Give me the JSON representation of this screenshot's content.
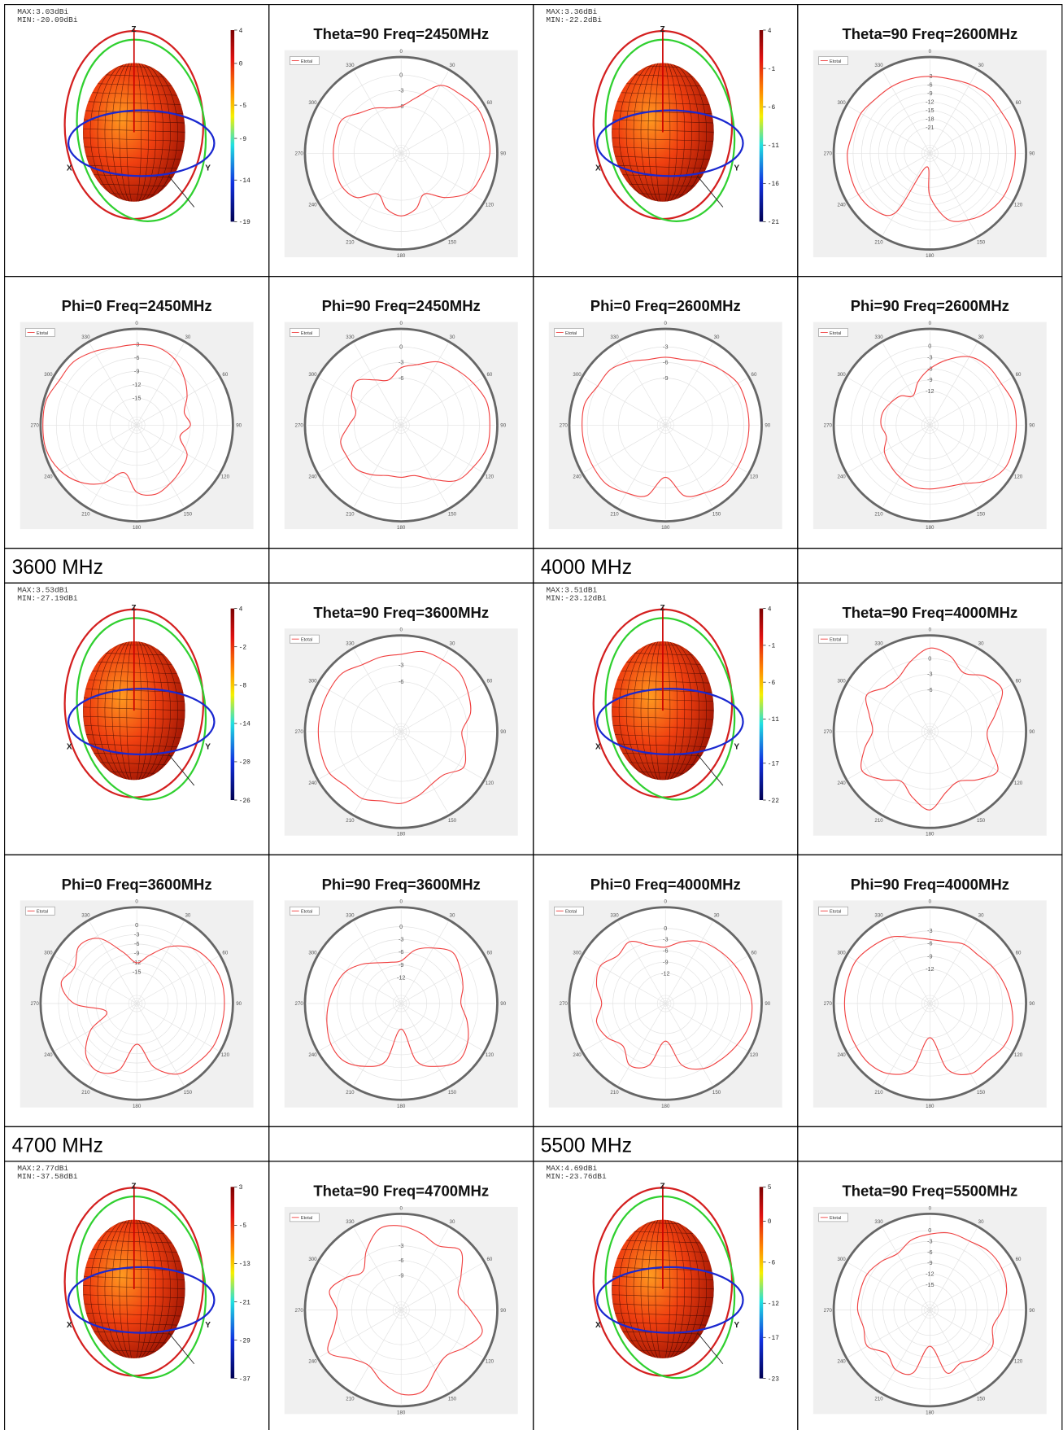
{
  "axis_labels": [
    "Z",
    "X",
    "Y"
  ],
  "legend": "Etotal",
  "angle_ticks": [
    0,
    30,
    60,
    90,
    120,
    150,
    180,
    210,
    240,
    270,
    300,
    330
  ],
  "theta": [
    0,
    15,
    30,
    45,
    60,
    75,
    90,
    105,
    120,
    135,
    150,
    165,
    180,
    195,
    210,
    225,
    240,
    255,
    270,
    285,
    300,
    315,
    330,
    345
  ],
  "rows": [
    {
      "type": "plots",
      "cells": [
        {
          "kind": "3d",
          "max": "MAX:3.03dBi",
          "min": "MIN:-20.09dBi",
          "colorbar": [
            4,
            0,
            -5,
            -9,
            -14,
            -19
          ]
        },
        {
          "kind": "polar",
          "title": "Theta=90 Freq=2450MHz",
          "rlim": [
            -15,
            3
          ],
          "rticks": [
            0,
            -3,
            -6
          ],
          "values": [
            -6,
            -4,
            0,
            1,
            2,
            2,
            2,
            1,
            0,
            -3,
            -6,
            -4,
            -3,
            -4,
            -6,
            -3,
            -2,
            -2,
            -2,
            -2,
            -2,
            -4,
            -5,
            -6
          ]
        },
        {
          "kind": "3d",
          "max": "MAX:3.36dBi",
          "min": "MIN:-22.2dBi",
          "colorbar": [
            4,
            -1,
            -6,
            -11,
            -16,
            -21
          ]
        },
        {
          "kind": "polar",
          "title": "Theta=90 Freq=2600MHz",
          "rlim": [
            -30,
            3
          ],
          "rticks": [
            -3,
            -6,
            -9,
            -12,
            -15,
            -18,
            -21
          ],
          "values": [
            -3,
            -3,
            -2,
            -1,
            -1,
            0,
            0,
            0,
            0,
            -1,
            -3,
            -6,
            -15,
            -25,
            -6,
            -2,
            -1,
            -1,
            -1,
            -2,
            -2,
            -3,
            -3,
            -3
          ]
        }
      ]
    },
    {
      "type": "plots",
      "cells": [
        {
          "kind": "polar",
          "title": "Phi=0 Freq=2450MHz",
          "rlim": [
            -21,
            0
          ],
          "rticks": [
            -3,
            -6,
            -9,
            -12,
            -15
          ],
          "values": [
            -3,
            -3,
            -4,
            -6,
            -8,
            -10,
            -9,
            -11,
            -8,
            -7,
            -6,
            -5,
            -6,
            -10,
            -6,
            -3,
            -1,
            0,
            0,
            0,
            -1,
            -1,
            -2,
            -3
          ]
        },
        {
          "kind": "polar",
          "title": "Phi=90 Freq=2450MHz",
          "rlim": [
            -15,
            3
          ],
          "rticks": [
            0,
            -3,
            -6
          ],
          "values": [
            -4,
            -3,
            -1,
            0,
            1,
            2,
            2,
            2,
            1,
            0,
            -3,
            -5,
            -5,
            -5,
            -4,
            -3,
            -3,
            -3,
            -5,
            -6,
            -4,
            -3,
            -5,
            -6
          ]
        },
        {
          "kind": "polar",
          "title": "Phi=0 Freq=2600MHz",
          "rlim": [
            -18,
            0
          ],
          "rticks": [
            -3,
            -6,
            -9
          ],
          "values": [
            -5,
            -5,
            -4,
            -3,
            -2,
            -2,
            -2,
            -2,
            -2,
            -2,
            -3,
            -4,
            -8,
            -4,
            -3,
            -2,
            -2,
            -2,
            -2,
            -2,
            -3,
            -3,
            -4,
            -5
          ]
        },
        {
          "kind": "polar",
          "title": "Phi=90 Freq=2600MHz",
          "rlim": [
            -21,
            4
          ],
          "rticks": [
            0,
            -3,
            -6,
            -9,
            -12
          ],
          "values": [
            -6,
            -3,
            0,
            1,
            1,
            2,
            2,
            2,
            2,
            0,
            -3,
            -4,
            -4,
            -4,
            -5,
            -6,
            -7,
            -9,
            -8,
            -8,
            -9,
            -10,
            -12,
            -9
          ]
        }
      ]
    },
    {
      "type": "header",
      "labels": [
        "3600 MHz",
        "4000 MHz"
      ]
    },
    {
      "type": "plots",
      "cells": [
        {
          "kind": "3d",
          "max": "MAX:3.53dBi",
          "min": "MIN:-27.19dBi",
          "colorbar": [
            4,
            -2,
            -8,
            -14,
            -20,
            -26
          ]
        },
        {
          "kind": "polar",
          "title": "Theta=90 Freq=3600MHz",
          "rlim": [
            -15,
            2
          ],
          "rticks": [
            -3,
            -6
          ],
          "values": [
            -1,
            0,
            0,
            0,
            -1,
            -2,
            -4,
            -3,
            -2,
            -4,
            -4,
            -3,
            -2,
            -2,
            -1,
            -1,
            0,
            0,
            0,
            0,
            0,
            0,
            -1,
            -1
          ]
        },
        {
          "kind": "3d",
          "max": "MAX:3.51dBi",
          "min": "MIN:-23.12dBi",
          "colorbar": [
            4,
            -1,
            -6,
            -11,
            -17,
            -22
          ]
        },
        {
          "kind": "polar",
          "title": "Theta=90 Freq=4000MHz",
          "rlim": [
            -14,
            4
          ],
          "rticks": [
            0,
            -3,
            -6
          ],
          "values": [
            2,
            1,
            -1,
            1,
            2,
            -1,
            -3,
            -2,
            1,
            -1,
            -3,
            -2,
            1,
            -1,
            -3,
            -1,
            1,
            -1,
            -3,
            -2,
            0,
            -2,
            -2,
            0
          ]
        }
      ]
    },
    {
      "type": "plots",
      "cells": [
        {
          "kind": "polar",
          "title": "Phi=0 Freq=3600MHz",
          "rlim": [
            -25,
            5
          ],
          "rticks": [
            0,
            -3,
            -6,
            -9,
            -12,
            -15
          ],
          "values": [
            -12,
            -9,
            -4,
            0,
            2,
            3,
            3,
            3,
            3,
            2,
            1,
            -4,
            -12,
            -3,
            0,
            -2,
            -8,
            -15,
            -5,
            0,
            -2,
            1,
            -1,
            -8
          ]
        },
        {
          "kind": "polar",
          "title": "Phi=90 Freq=3600MHz",
          "rlim": [
            -18,
            4
          ],
          "rticks": [
            0,
            -3,
            -6,
            -9,
            -12
          ],
          "values": [
            -8,
            -5,
            -3,
            -1,
            -2,
            -3,
            -4,
            -2,
            0,
            1,
            -1,
            -4,
            -12,
            -4,
            -1,
            1,
            1,
            0,
            -1,
            -2,
            -3,
            -5,
            -7,
            -8
          ]
        },
        {
          "kind": "polar",
          "title": "Phi=0 Freq=4000MHz",
          "rlim": [
            -20,
            5
          ],
          "rticks": [
            0,
            -3,
            -6,
            -9,
            -12
          ],
          "values": [
            -5,
            -3,
            -1,
            0,
            1,
            2,
            3,
            3,
            2,
            1,
            0,
            -3,
            -10,
            -3,
            -1,
            -4,
            -2,
            -1,
            -3,
            -1,
            0,
            -2,
            -1,
            -4
          ]
        },
        {
          "kind": "polar",
          "title": "Phi=90 Freq=4000MHz",
          "rlim": [
            -20,
            2
          ],
          "rticks": [
            -3,
            -6,
            -9,
            -12
          ],
          "values": [
            -5,
            -5,
            -4,
            -4,
            -3,
            -2,
            -1,
            0,
            0,
            -1,
            -1,
            -4,
            -12,
            -4,
            -1,
            0,
            0,
            0,
            0,
            0,
            0,
            -1,
            -2,
            -4
          ]
        }
      ]
    },
    {
      "type": "header",
      "labels": [
        "4700 MHz",
        "5500 MHz"
      ]
    },
    {
      "type": "plots",
      "cells": [
        {
          "kind": "3d",
          "max": "MAX:2.77dBi",
          "min": "MIN:-37.58dBi",
          "colorbar": [
            3,
            -5,
            -13,
            -21,
            -29,
            -37
          ]
        },
        {
          "kind": "polar",
          "title": "Theta=90 Freq=4700MHz",
          "rlim": [
            -16,
            3
          ],
          "rticks": [
            -3,
            -6,
            -9
          ],
          "values": [
            1,
            0,
            -1,
            1,
            -2,
            -4,
            -2,
            1,
            -1,
            -3,
            -2,
            1,
            1,
            -1,
            -3,
            -2,
            1,
            -2,
            -3,
            -1,
            -3,
            -5,
            -2,
            1
          ]
        },
        {
          "kind": "3d",
          "max": "MAX:4.69dBi",
          "min": "MIN:-23.76dBi",
          "colorbar": [
            5,
            0,
            -6,
            -12,
            -17,
            -23
          ]
        },
        {
          "kind": "polar",
          "title": "Theta=90 Freq=5500MHz",
          "rlim": [
            -22,
            4
          ],
          "rticks": [
            0,
            -3,
            -6,
            -9,
            -12,
            -15
          ],
          "values": [
            -1,
            0,
            0,
            1,
            1,
            0,
            -2,
            -4,
            -2,
            -3,
            -5,
            -4,
            -12,
            -4,
            -3,
            -5,
            -2,
            -3,
            -2,
            -2,
            -2,
            -3,
            -4,
            -2
          ]
        }
      ]
    }
  ]
}
